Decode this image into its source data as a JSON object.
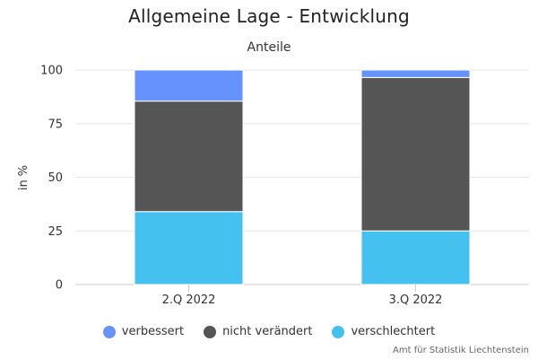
{
  "chart_data": {
    "type": "bar",
    "stacked": true,
    "title": "Allgemeine Lage - Entwicklung",
    "subtitle": "Anteile",
    "ylabel": "in %",
    "ylim": [
      0,
      100
    ],
    "yticks": [
      0,
      25,
      50,
      75,
      100
    ],
    "grid": true,
    "legend_position": "bottom",
    "categories": [
      "2.Q 2022",
      "3.Q 2022"
    ],
    "series": [
      {
        "name": "verschlechtert",
        "color": "#45c1f0",
        "values": [
          34,
          25
        ]
      },
      {
        "name": "nicht verändert",
        "color": "#555556",
        "values": [
          51.5,
          71.5
        ]
      },
      {
        "name": "verbessert",
        "color": "#6592fd",
        "values": [
          14.5,
          3.5
        ]
      }
    ],
    "legend_order": [
      "verbessert",
      "nicht verändert",
      "verschlechtert"
    ]
  },
  "credits": "Amt für Statistik Liechtenstein"
}
